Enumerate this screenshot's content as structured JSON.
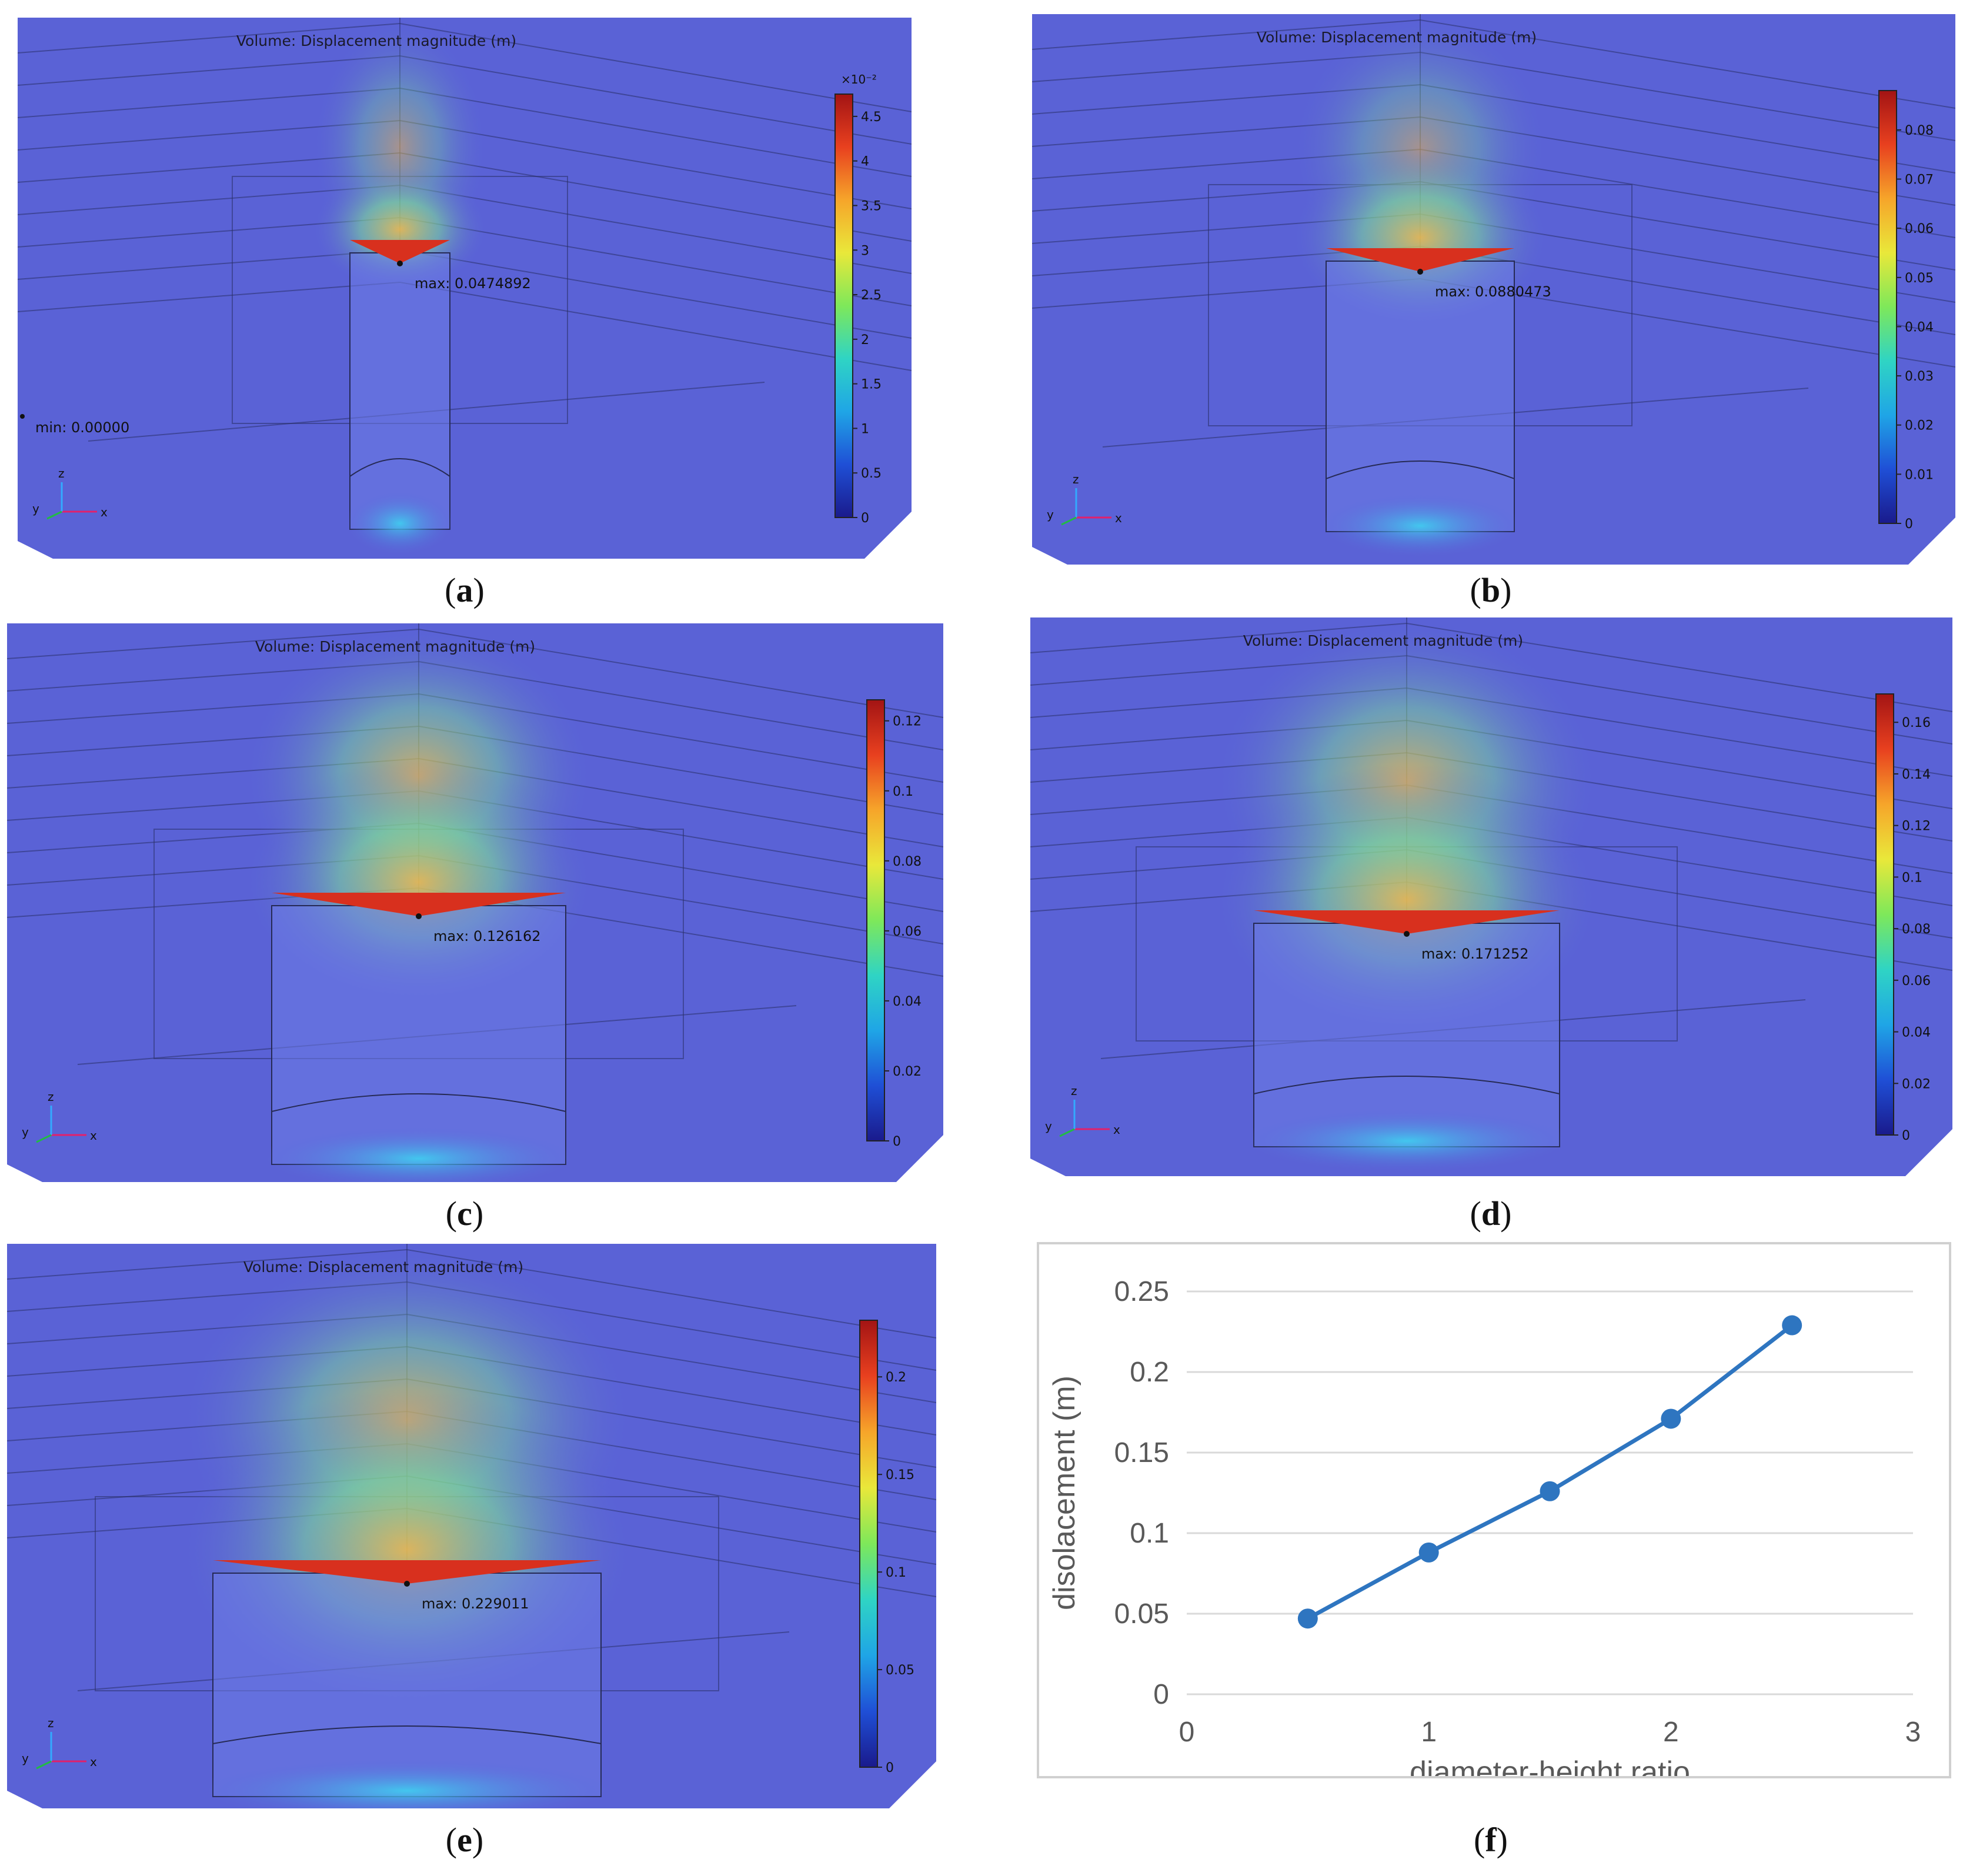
{
  "panels": [
    {
      "id": "a",
      "title": "Volume: Displacement magnitude (m)",
      "max_label": "max: 0.0474892",
      "min_label": "min: 0.00000",
      "scale_exponent": "×10⁻²",
      "ticks": [
        "0",
        "0.5",
        "1",
        "1.5",
        "2",
        "2.5",
        "3",
        "3.5",
        "4",
        "4.5"
      ],
      "scale_max": 4.75,
      "axes": {
        "x": "x",
        "y": "y",
        "z": "z"
      },
      "caption": "a"
    },
    {
      "id": "b",
      "title": "Volume: Displacement magnitude (m)",
      "max_label": "max: 0.0880473",
      "min_label": "",
      "scale_exponent": "",
      "ticks": [
        "0",
        "0.01",
        "0.02",
        "0.03",
        "0.04",
        "0.05",
        "0.06",
        "0.07",
        "0.08"
      ],
      "scale_max": 0.088,
      "axes": {
        "x": "x",
        "y": "y",
        "z": "z"
      },
      "caption": "b"
    },
    {
      "id": "c",
      "title": "Volume: Displacement magnitude (m)",
      "max_label": "max: 0.126162",
      "min_label": "",
      "scale_exponent": "",
      "ticks": [
        "0",
        "0.02",
        "0.04",
        "0.06",
        "0.08",
        "0.1",
        "0.12"
      ],
      "scale_max": 0.126,
      "axes": {
        "x": "x",
        "y": "y",
        "z": "z"
      },
      "caption": "c"
    },
    {
      "id": "d",
      "title": "Volume: Displacement magnitude (m)",
      "max_label": "max: 0.171252",
      "min_label": "",
      "scale_exponent": "",
      "ticks": [
        "0",
        "0.02",
        "0.04",
        "0.06",
        "0.08",
        "0.1",
        "0.12",
        "0.14",
        "0.16"
      ],
      "scale_max": 0.171,
      "axes": {
        "x": "x",
        "y": "y",
        "z": "z"
      },
      "caption": "d"
    },
    {
      "id": "e",
      "title": "Volume: Displacement magnitude (m)",
      "max_label": "max: 0.229011",
      "min_label": "",
      "scale_exponent": "",
      "ticks": [
        "0",
        "0.05",
        "0.1",
        "0.15",
        "0.2"
      ],
      "scale_max": 0.229,
      "axes": {
        "x": "x",
        "y": "y",
        "z": "z"
      },
      "caption": "e"
    }
  ],
  "chart_caption": "f",
  "chart_data": {
    "type": "line",
    "x": [
      0.5,
      1,
      1.5,
      2,
      2.5
    ],
    "series": [
      {
        "name": "displacement",
        "values": [
          0.047,
          0.088,
          0.126,
          0.171,
          0.229
        ]
      }
    ],
    "xlabel": "diameter-height ratio",
    "ylabel": "disolacement (m)",
    "xlim": [
      0,
      3
    ],
    "ylim": [
      0,
      0.25
    ],
    "xticks": [
      "0",
      "1",
      "2",
      "3"
    ],
    "yticks": [
      "0",
      "0.05",
      "0.1",
      "0.15",
      "0.2",
      "0.25"
    ],
    "grid": true,
    "line_color": "#2e75c0"
  }
}
